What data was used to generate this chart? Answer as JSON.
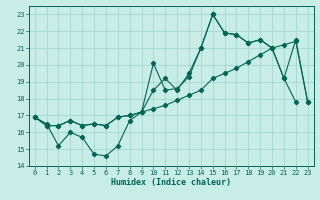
{
  "xlabel": "Humidex (Indice chaleur)",
  "bg_color": "#c8ece6",
  "grid_color": "#9dd4cc",
  "line_color": "#006655",
  "xlim": [
    -0.5,
    23.5
  ],
  "ylim": [
    14,
    23.5
  ],
  "yticks": [
    14,
    15,
    16,
    17,
    18,
    19,
    20,
    21,
    22,
    23
  ],
  "xticks": [
    0,
    1,
    2,
    3,
    4,
    5,
    6,
    7,
    8,
    9,
    10,
    11,
    12,
    13,
    14,
    15,
    16,
    17,
    18,
    19,
    20,
    21,
    22,
    23
  ],
  "series1_x": [
    0,
    1,
    2,
    3,
    4,
    5,
    6,
    7,
    8,
    9,
    10,
    11,
    12,
    13,
    14,
    15,
    16,
    17,
    18,
    19,
    20,
    21,
    22
  ],
  "series1_y": [
    16.9,
    16.5,
    15.2,
    16.0,
    15.7,
    14.7,
    14.6,
    15.2,
    16.7,
    17.2,
    20.1,
    18.5,
    18.6,
    19.3,
    21.0,
    23.0,
    21.9,
    21.8,
    21.3,
    21.5,
    21.0,
    19.2,
    17.8
  ],
  "series2_x": [
    0,
    1,
    2,
    3,
    4,
    5,
    6,
    7,
    8,
    9,
    10,
    11,
    12,
    13,
    14,
    15,
    16,
    17,
    18,
    19,
    20,
    21,
    22,
    23
  ],
  "series2_y": [
    16.9,
    16.4,
    16.4,
    16.7,
    16.4,
    16.5,
    16.4,
    16.9,
    17.0,
    17.2,
    17.4,
    17.6,
    17.9,
    18.2,
    18.5,
    19.2,
    19.5,
    19.8,
    20.2,
    20.6,
    21.0,
    21.2,
    21.4,
    17.8
  ],
  "series3_x": [
    0,
    1,
    2,
    3,
    4,
    5,
    6,
    7,
    8,
    9,
    10,
    11,
    12,
    13,
    14,
    15,
    16,
    17,
    18,
    19,
    20,
    21,
    22,
    23
  ],
  "series3_y": [
    16.9,
    16.4,
    16.4,
    16.7,
    16.4,
    16.5,
    16.4,
    16.9,
    17.0,
    17.2,
    18.5,
    19.2,
    18.5,
    19.5,
    21.0,
    23.0,
    21.9,
    21.8,
    21.3,
    21.5,
    21.0,
    19.2,
    21.5,
    17.8
  ],
  "label_fontsize": 5.5,
  "tick_fontsize": 5,
  "xlabel_fontsize": 6.0
}
